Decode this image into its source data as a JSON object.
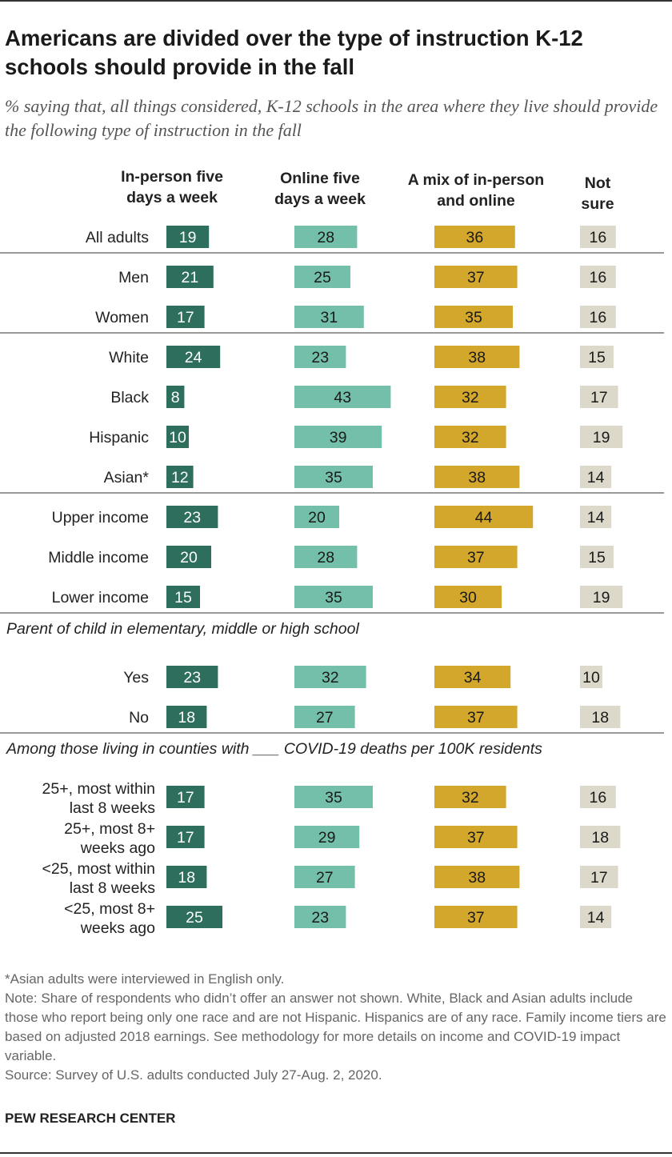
{
  "title": "Americans are divided over the type of instruction K-12 schools should provide in the fall",
  "subtitle": "% saying that, all things considered, K-12 schools in the area where they live should provide the following type of instruction in the fall",
  "columns": [
    {
      "line1": "In-person five",
      "line2": "days a week"
    },
    {
      "line1": "Online five",
      "line2": "days a week"
    },
    {
      "line1": "A mix of in-person",
      "line2": "and online"
    },
    {
      "line1": "Not",
      "line2": "sure"
    }
  ],
  "colors": {
    "in_person": "#2e6e5d",
    "online": "#73bfaa",
    "mix": "#d3a62c",
    "not_sure": "#dcd9cb",
    "divider": "#999999"
  },
  "chart_data": {
    "type": "bar",
    "series": [
      {
        "name": "In-person five days a week"
      },
      {
        "name": "Online five days a week"
      },
      {
        "name": "A mix of in-person and online"
      },
      {
        "name": "Not sure"
      }
    ],
    "sections": [
      {
        "heading": "",
        "rows": [
          {
            "label": [
              "All adults"
            ],
            "values": [
              19,
              28,
              36,
              16
            ]
          }
        ]
      },
      {
        "heading": "",
        "rows": [
          {
            "label": [
              "Men"
            ],
            "values": [
              21,
              25,
              37,
              16
            ]
          },
          {
            "label": [
              "Women"
            ],
            "values": [
              17,
              31,
              35,
              16
            ]
          }
        ]
      },
      {
        "heading": "",
        "rows": [
          {
            "label": [
              "White"
            ],
            "values": [
              24,
              23,
              38,
              15
            ]
          },
          {
            "label": [
              "Black"
            ],
            "values": [
              8,
              43,
              32,
              17
            ]
          },
          {
            "label": [
              "Hispanic"
            ],
            "values": [
              10,
              39,
              32,
              19
            ]
          },
          {
            "label": [
              "Asian*"
            ],
            "values": [
              12,
              35,
              38,
              14
            ]
          }
        ]
      },
      {
        "heading": "",
        "rows": [
          {
            "label": [
              "Upper income"
            ],
            "values": [
              23,
              20,
              44,
              14
            ]
          },
          {
            "label": [
              "Middle income"
            ],
            "values": [
              20,
              28,
              37,
              15
            ]
          },
          {
            "label": [
              "Lower income"
            ],
            "values": [
              15,
              35,
              30,
              19
            ]
          }
        ]
      },
      {
        "heading": "Parent of child in elementary, middle or high school",
        "rows": [
          {
            "label": [
              "Yes"
            ],
            "values": [
              23,
              32,
              34,
              10
            ]
          },
          {
            "label": [
              "No"
            ],
            "values": [
              18,
              27,
              37,
              18
            ]
          }
        ]
      },
      {
        "heading": "Among those living in counties with ___ COVID-19 deaths per 100K residents",
        "rows": [
          {
            "label": [
              "25+, most within",
              "last 8 weeks"
            ],
            "values": [
              17,
              35,
              32,
              16
            ]
          },
          {
            "label": [
              "25+, most 8+",
              "weeks ago"
            ],
            "values": [
              17,
              29,
              37,
              18
            ]
          },
          {
            "label": [
              "<25, most within",
              "last 8 weeks"
            ],
            "values": [
              18,
              27,
              38,
              17
            ]
          },
          {
            "label": [
              "<25, most 8+",
              "weeks ago"
            ],
            "values": [
              25,
              23,
              37,
              14
            ]
          }
        ]
      }
    ]
  },
  "footnotes": [
    "*Asian adults were interviewed in English only.",
    "Note: Share of respondents who didn’t offer an answer not shown. White, Black and Asian adults include those who report being only one race and are not Hispanic. Hispanics are of any race. Family income tiers are based on adjusted 2018 earnings. See methodology for more details on income and COVID-19 impact variable.",
    "Source: Survey of U.S. adults conducted July 27-Aug. 2, 2020."
  ],
  "brand": "PEW RESEARCH CENTER"
}
